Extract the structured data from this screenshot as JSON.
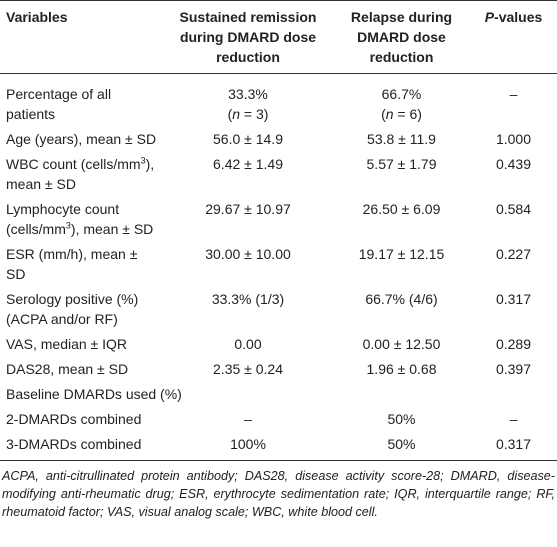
{
  "table": {
    "header": [
      [
        "Variables"
      ],
      [
        "Sustained remission during DMARD dose reduction"
      ],
      [
        "Relapse during DMARD dose reduction"
      ],
      [
        "P",
        "-values"
      ]
    ],
    "rows": [
      [
        [
          "Percentage of all patients"
        ],
        [
          "33.3%",
          "(",
          "n",
          " = 3)"
        ],
        [
          "66.7%",
          "(",
          "n",
          " = 6)"
        ],
        [
          "–"
        ]
      ],
      [
        [
          "Age (years), mean ± SD"
        ],
        [
          "56.0 ± 14.9"
        ],
        [
          "53.8 ± 11.9"
        ],
        [
          "1.000"
        ]
      ],
      [
        [
          "WBC count (cells/mm",
          "3",
          "), mean ± SD"
        ],
        [
          "6.42 ± 1.49"
        ],
        [
          "5.57 ± 1.79"
        ],
        [
          "0.439"
        ]
      ],
      [
        [
          "Lymphocyte count (cells/mm",
          "3",
          "), mean ± SD"
        ],
        [
          "29.67 ± 10.97"
        ],
        [
          "26.50 ± 6.09"
        ],
        [
          "0.584"
        ]
      ],
      [
        [
          "ESR (mm/h), mean ± SD"
        ],
        [
          "30.00 ± 10.00"
        ],
        [
          "19.17 ± 12.15"
        ],
        [
          "0.227"
        ]
      ],
      [
        [
          "Serology positive (%) (ACPA and/or RF)"
        ],
        [
          "33.3% (1/3)"
        ],
        [
          "66.7% (4/6)"
        ],
        [
          "0.317"
        ]
      ],
      [
        [
          "VAS, median ± IQR"
        ],
        [
          "0.00"
        ],
        [
          "0.00 ± 12.50"
        ],
        [
          "0.289"
        ]
      ],
      [
        [
          "DAS28, mean ± SD"
        ],
        [
          "2.35 ± 0.24"
        ],
        [
          "1.96 ± 0.68"
        ],
        [
          "0.397"
        ]
      ],
      [
        [
          "Baseline DMARDs used (%)"
        ]
      ],
      [
        [
          "2-DMARDs combined"
        ],
        [
          "–"
        ],
        [
          "50%"
        ],
        [
          "–"
        ]
      ],
      [
        [
          "3-DMARDs combined"
        ],
        [
          "100%"
        ],
        [
          "50%"
        ],
        [
          "0.317"
        ]
      ]
    ],
    "footnote": "ACPA, anti-citrullinated protein antibody; DAS28, disease activity score-28; DMARD, disease-modifying anti-rheumatic drug; ESR, erythrocyte sedimentation rate; IQR, interquartile range; RF, rheumatoid factor; VAS, visual analog scale; WBC, white blood cell."
  }
}
